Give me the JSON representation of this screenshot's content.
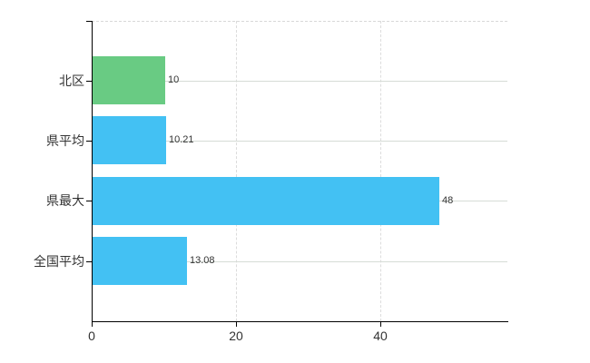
{
  "chart_data": {
    "type": "bar",
    "orientation": "horizontal",
    "title": "",
    "xlabel": "",
    "ylabel": "",
    "categories": [
      "北区",
      "県平均",
      "県最大",
      "全国平均"
    ],
    "values": [
      10,
      10.21,
      48,
      13.08
    ],
    "value_labels": [
      "10",
      "10.21",
      "48",
      "13.08"
    ],
    "series": [
      {
        "name": "北区",
        "value": 10,
        "color": "#69cb83"
      },
      {
        "name": "県平均",
        "value": 10.21,
        "color": "#43c1f3"
      },
      {
        "name": "県最大",
        "value": 48,
        "color": "#43c1f3"
      },
      {
        "name": "全国平均",
        "value": 13.08,
        "color": "#43c1f3"
      }
    ],
    "bar_colors": [
      "#69cb83",
      "#43c1f3",
      "#43c1f3",
      "#43c1f3"
    ],
    "x_ticks": [
      {
        "value": 0,
        "label": "0"
      },
      {
        "value": 20,
        "label": "20"
      },
      {
        "value": 40,
        "label": "40"
      }
    ],
    "xlim": [
      0,
      57.6
    ],
    "legend": "none",
    "grid": {
      "horizontal": "solid line at each category center",
      "vertical": "dashed line at value-axis ticks",
      "plot_top_border": "dashed"
    },
    "colors": {
      "green_bar": "#69cb83",
      "blue_bar": "#43c1f3",
      "axis": "#000000",
      "horizontal_gridline": "#d6dcd6",
      "vertical_gridline": "#dcdcdc",
      "label_text": "#333333",
      "background": "#ffffff"
    }
  }
}
